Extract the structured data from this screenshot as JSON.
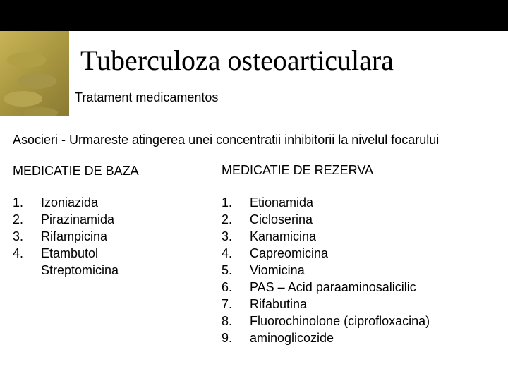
{
  "title": "Tuberculoza osteoarticulara",
  "subtitle": "Tratament medicamentos",
  "description": "Asocieri - Urmareste atingerea unei concentratii inhibitorii la nivelul focarului",
  "left": {
    "header": "MEDICATIE DE BAZA",
    "items": [
      {
        "num": "1.",
        "text": "Izoniazida"
      },
      {
        "num": "2.",
        "text": "Pirazinamida"
      },
      {
        "num": "3.",
        "text": "Rifampicina"
      },
      {
        "num": "4.",
        "text": "Etambutol"
      },
      {
        "num": "",
        "text": "Streptomicina"
      }
    ]
  },
  "right": {
    "header": "MEDICATIE DE REZERVA",
    "items": [
      {
        "num": "1.",
        "text": "Etionamida"
      },
      {
        "num": "2.",
        "text": "Cicloserina"
      },
      {
        "num": "3.",
        "text": "Kanamicina"
      },
      {
        "num": "4.",
        "text": "Capreomicina"
      },
      {
        "num": "5.",
        "text": "Viomicina"
      },
      {
        "num": "6.",
        "text": "PAS – Acid paraaminosalicilic"
      },
      {
        "num": "7.",
        "text": "Rifabutina"
      },
      {
        "num": "8.",
        "text": "Fluorochinolone (ciprofloxacina)"
      },
      {
        "num": "9.",
        "text": "aminoglicozide"
      }
    ]
  }
}
